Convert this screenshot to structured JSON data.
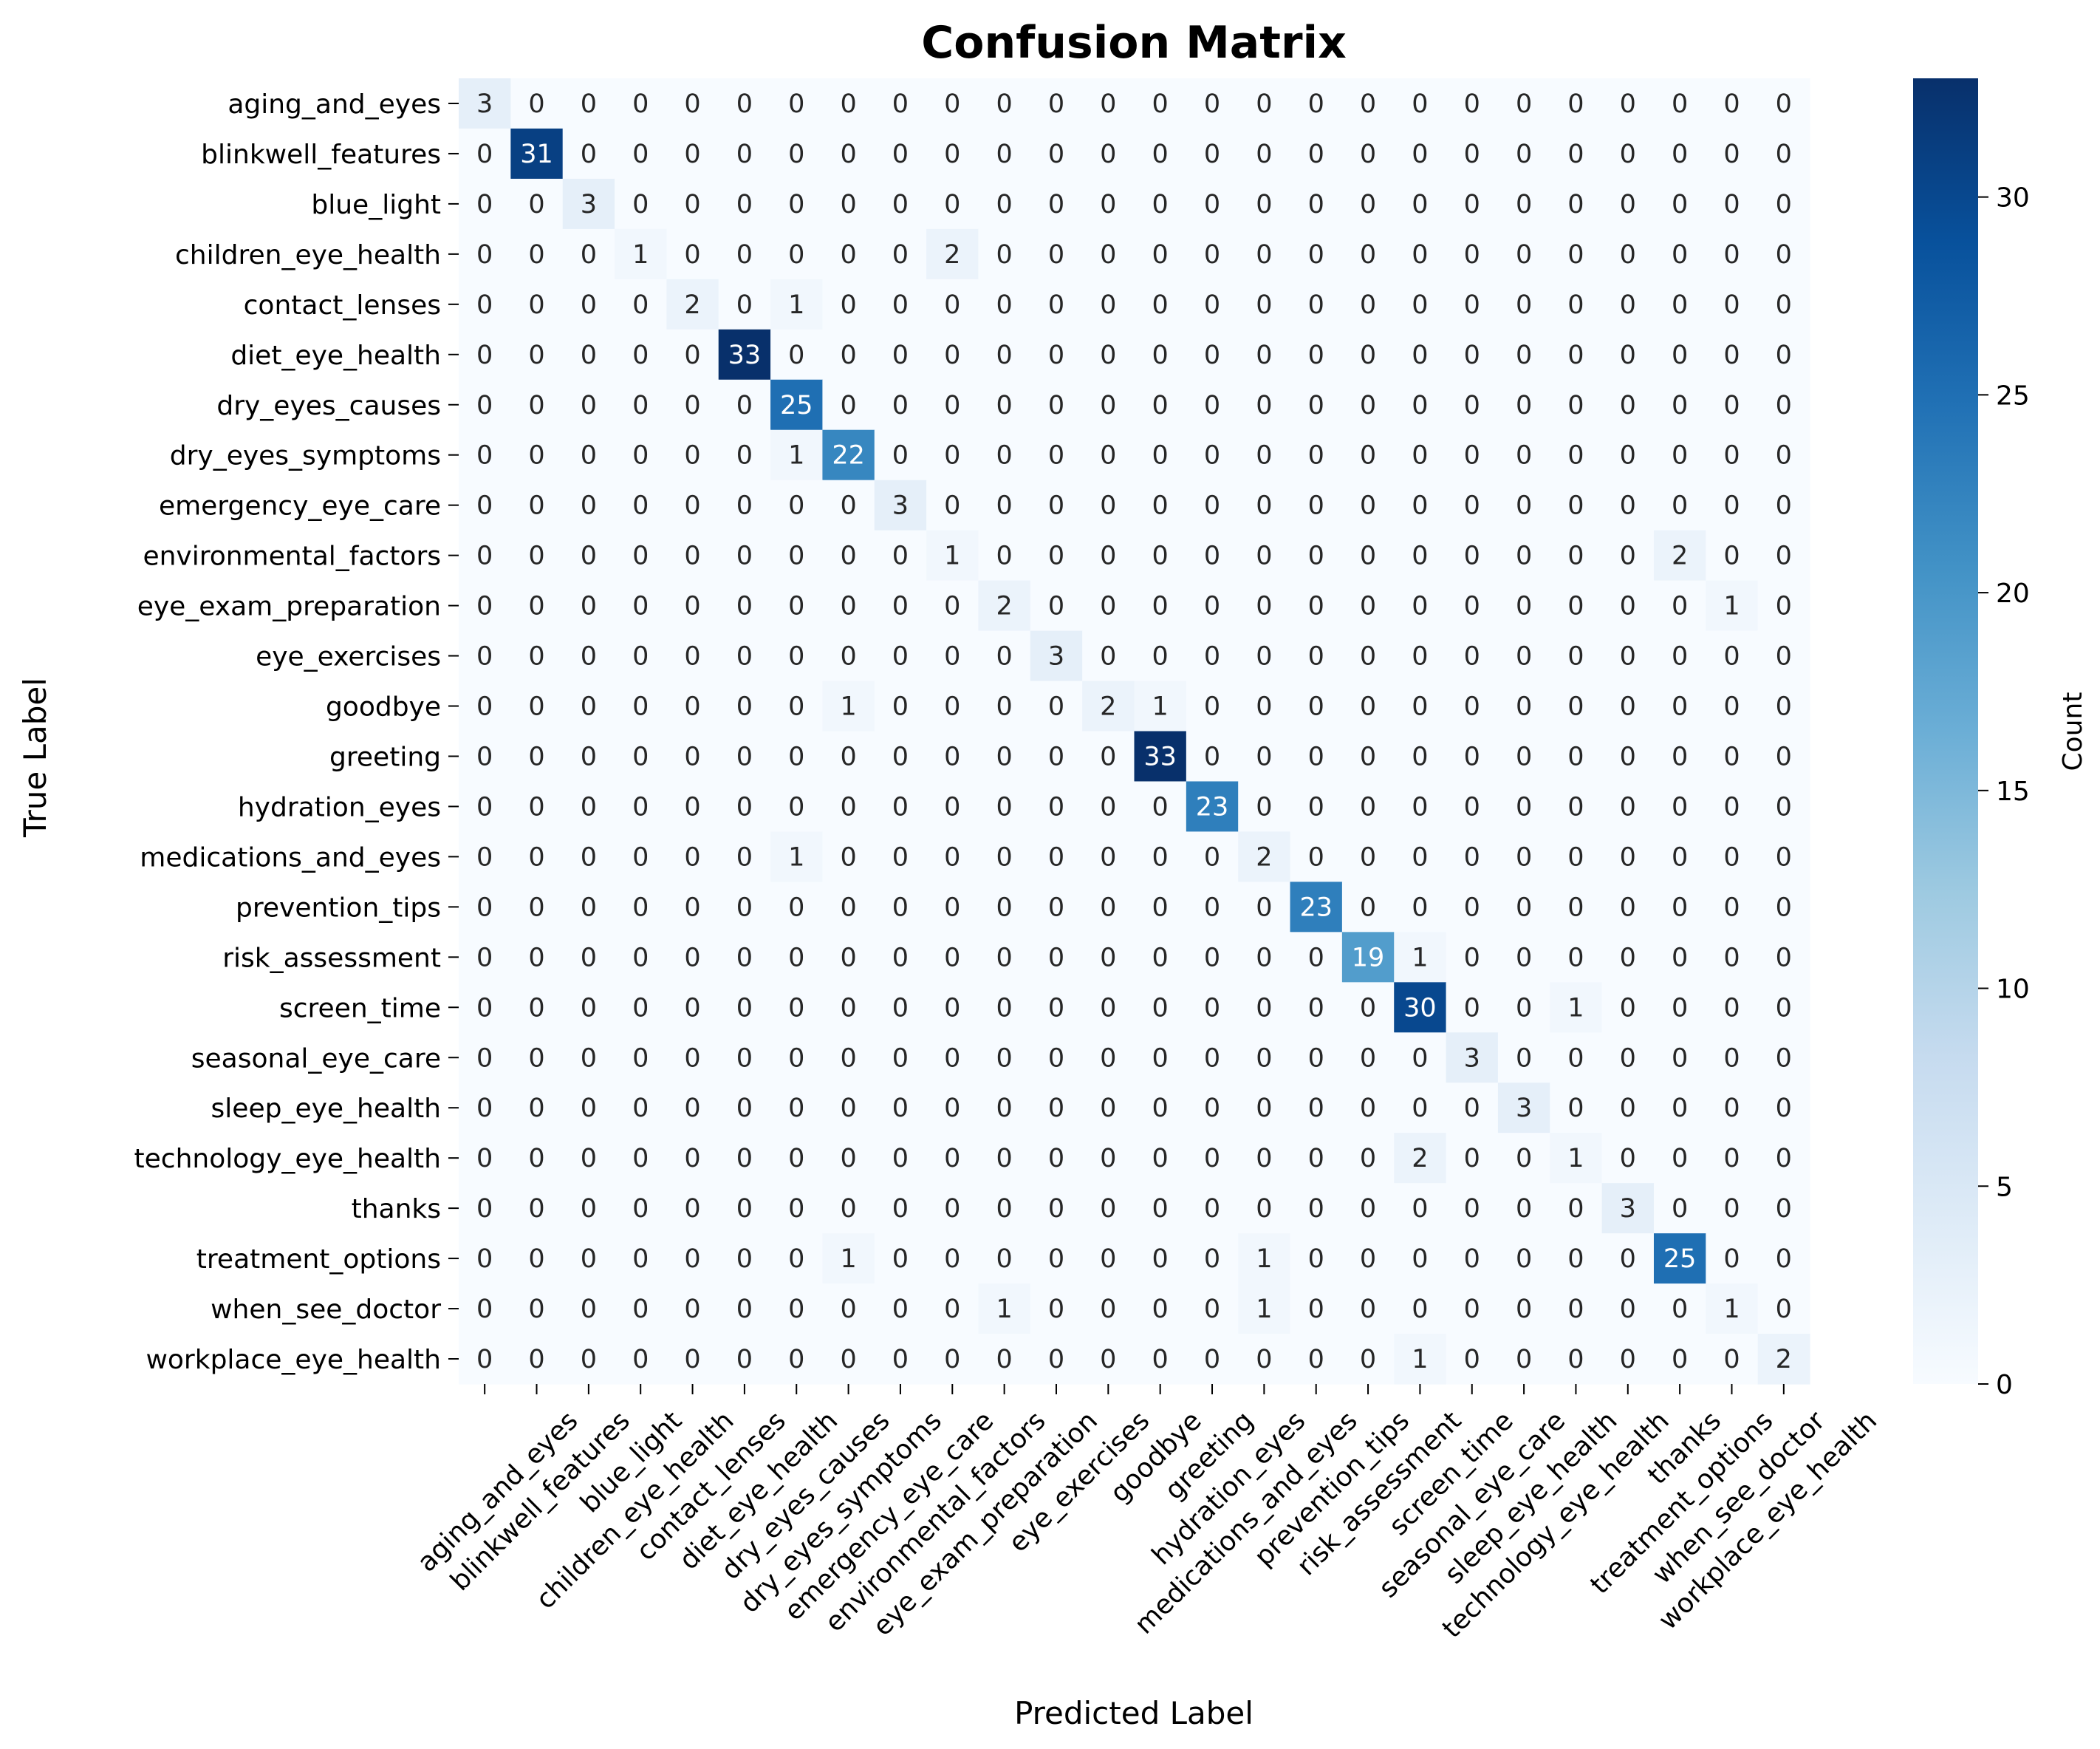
{
  "chart_data": {
    "type": "heatmap",
    "title": "Confusion Matrix",
    "xlabel": "Predicted Label",
    "ylabel": "True Label",
    "colorbar_label": "Count",
    "colormap": "Blues",
    "vmin": 0,
    "vmax": 33,
    "colorbar_ticks": [
      0,
      5,
      10,
      15,
      20,
      25,
      30
    ],
    "labels": [
      "aging_and_eyes",
      "blinkwell_features",
      "blue_light",
      "children_eye_health",
      "contact_lenses",
      "diet_eye_health",
      "dry_eyes_causes",
      "dry_eyes_symptoms",
      "emergency_eye_care",
      "environmental_factors",
      "eye_exam_preparation",
      "eye_exercises",
      "goodbye",
      "greeting",
      "hydration_eyes",
      "medications_and_eyes",
      "prevention_tips",
      "risk_assessment",
      "screen_time",
      "seasonal_eye_care",
      "sleep_eye_health",
      "technology_eye_health",
      "thanks",
      "treatment_options",
      "when_see_doctor",
      "workplace_eye_health"
    ],
    "matrix": [
      [
        3,
        0,
        0,
        0,
        0,
        0,
        0,
        0,
        0,
        0,
        0,
        0,
        0,
        0,
        0,
        0,
        0,
        0,
        0,
        0,
        0,
        0,
        0,
        0,
        0,
        0
      ],
      [
        0,
        31,
        0,
        0,
        0,
        0,
        0,
        0,
        0,
        0,
        0,
        0,
        0,
        0,
        0,
        0,
        0,
        0,
        0,
        0,
        0,
        0,
        0,
        0,
        0,
        0
      ],
      [
        0,
        0,
        3,
        0,
        0,
        0,
        0,
        0,
        0,
        0,
        0,
        0,
        0,
        0,
        0,
        0,
        0,
        0,
        0,
        0,
        0,
        0,
        0,
        0,
        0,
        0
      ],
      [
        0,
        0,
        0,
        1,
        0,
        0,
        0,
        0,
        0,
        2,
        0,
        0,
        0,
        0,
        0,
        0,
        0,
        0,
        0,
        0,
        0,
        0,
        0,
        0,
        0,
        0
      ],
      [
        0,
        0,
        0,
        0,
        2,
        0,
        1,
        0,
        0,
        0,
        0,
        0,
        0,
        0,
        0,
        0,
        0,
        0,
        0,
        0,
        0,
        0,
        0,
        0,
        0,
        0
      ],
      [
        0,
        0,
        0,
        0,
        0,
        33,
        0,
        0,
        0,
        0,
        0,
        0,
        0,
        0,
        0,
        0,
        0,
        0,
        0,
        0,
        0,
        0,
        0,
        0,
        0,
        0
      ],
      [
        0,
        0,
        0,
        0,
        0,
        0,
        25,
        0,
        0,
        0,
        0,
        0,
        0,
        0,
        0,
        0,
        0,
        0,
        0,
        0,
        0,
        0,
        0,
        0,
        0,
        0
      ],
      [
        0,
        0,
        0,
        0,
        0,
        0,
        1,
        22,
        0,
        0,
        0,
        0,
        0,
        0,
        0,
        0,
        0,
        0,
        0,
        0,
        0,
        0,
        0,
        0,
        0,
        0
      ],
      [
        0,
        0,
        0,
        0,
        0,
        0,
        0,
        0,
        3,
        0,
        0,
        0,
        0,
        0,
        0,
        0,
        0,
        0,
        0,
        0,
        0,
        0,
        0,
        0,
        0,
        0
      ],
      [
        0,
        0,
        0,
        0,
        0,
        0,
        0,
        0,
        0,
        1,
        0,
        0,
        0,
        0,
        0,
        0,
        0,
        0,
        0,
        0,
        0,
        0,
        0,
        2,
        0,
        0
      ],
      [
        0,
        0,
        0,
        0,
        0,
        0,
        0,
        0,
        0,
        0,
        2,
        0,
        0,
        0,
        0,
        0,
        0,
        0,
        0,
        0,
        0,
        0,
        0,
        0,
        1,
        0
      ],
      [
        0,
        0,
        0,
        0,
        0,
        0,
        0,
        0,
        0,
        0,
        0,
        3,
        0,
        0,
        0,
        0,
        0,
        0,
        0,
        0,
        0,
        0,
        0,
        0,
        0,
        0
      ],
      [
        0,
        0,
        0,
        0,
        0,
        0,
        0,
        1,
        0,
        0,
        0,
        0,
        2,
        1,
        0,
        0,
        0,
        0,
        0,
        0,
        0,
        0,
        0,
        0,
        0,
        0
      ],
      [
        0,
        0,
        0,
        0,
        0,
        0,
        0,
        0,
        0,
        0,
        0,
        0,
        0,
        33,
        0,
        0,
        0,
        0,
        0,
        0,
        0,
        0,
        0,
        0,
        0,
        0
      ],
      [
        0,
        0,
        0,
        0,
        0,
        0,
        0,
        0,
        0,
        0,
        0,
        0,
        0,
        0,
        23,
        0,
        0,
        0,
        0,
        0,
        0,
        0,
        0,
        0,
        0,
        0
      ],
      [
        0,
        0,
        0,
        0,
        0,
        0,
        1,
        0,
        0,
        0,
        0,
        0,
        0,
        0,
        0,
        2,
        0,
        0,
        0,
        0,
        0,
        0,
        0,
        0,
        0,
        0
      ],
      [
        0,
        0,
        0,
        0,
        0,
        0,
        0,
        0,
        0,
        0,
        0,
        0,
        0,
        0,
        0,
        0,
        23,
        0,
        0,
        0,
        0,
        0,
        0,
        0,
        0,
        0
      ],
      [
        0,
        0,
        0,
        0,
        0,
        0,
        0,
        0,
        0,
        0,
        0,
        0,
        0,
        0,
        0,
        0,
        0,
        19,
        1,
        0,
        0,
        0,
        0,
        0,
        0,
        0
      ],
      [
        0,
        0,
        0,
        0,
        0,
        0,
        0,
        0,
        0,
        0,
        0,
        0,
        0,
        0,
        0,
        0,
        0,
        0,
        30,
        0,
        0,
        1,
        0,
        0,
        0,
        0
      ],
      [
        0,
        0,
        0,
        0,
        0,
        0,
        0,
        0,
        0,
        0,
        0,
        0,
        0,
        0,
        0,
        0,
        0,
        0,
        0,
        3,
        0,
        0,
        0,
        0,
        0,
        0
      ],
      [
        0,
        0,
        0,
        0,
        0,
        0,
        0,
        0,
        0,
        0,
        0,
        0,
        0,
        0,
        0,
        0,
        0,
        0,
        0,
        0,
        3,
        0,
        0,
        0,
        0,
        0
      ],
      [
        0,
        0,
        0,
        0,
        0,
        0,
        0,
        0,
        0,
        0,
        0,
        0,
        0,
        0,
        0,
        0,
        0,
        0,
        2,
        0,
        0,
        1,
        0,
        0,
        0,
        0
      ],
      [
        0,
        0,
        0,
        0,
        0,
        0,
        0,
        0,
        0,
        0,
        0,
        0,
        0,
        0,
        0,
        0,
        0,
        0,
        0,
        0,
        0,
        0,
        3,
        0,
        0,
        0
      ],
      [
        0,
        0,
        0,
        0,
        0,
        0,
        0,
        1,
        0,
        0,
        0,
        0,
        0,
        0,
        0,
        1,
        0,
        0,
        0,
        0,
        0,
        0,
        0,
        25,
        0,
        0
      ],
      [
        0,
        0,
        0,
        0,
        0,
        0,
        0,
        0,
        0,
        0,
        1,
        0,
        0,
        0,
        0,
        1,
        0,
        0,
        0,
        0,
        0,
        0,
        0,
        0,
        1,
        0
      ],
      [
        0,
        0,
        0,
        0,
        0,
        0,
        0,
        0,
        0,
        0,
        0,
        0,
        0,
        0,
        0,
        0,
        0,
        0,
        1,
        0,
        0,
        0,
        0,
        0,
        0,
        2
      ]
    ]
  }
}
